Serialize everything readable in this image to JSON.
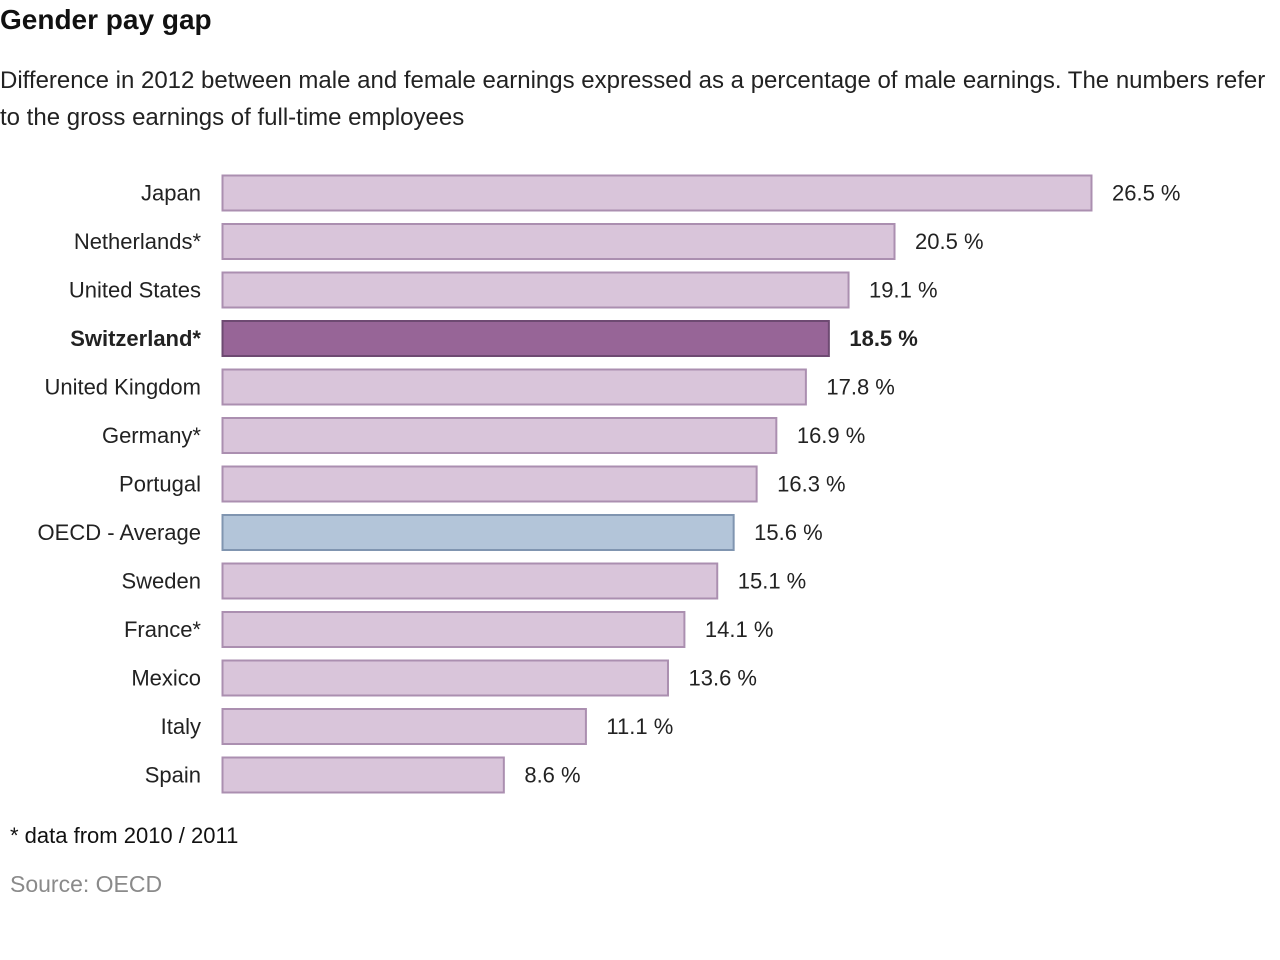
{
  "header": {
    "title": "Gender pay gap",
    "subtitle": "Difference in 2012 between male and female earnings expressed as a percentage of male earnings. The numbers refer to the gross earnings of full-time employees"
  },
  "chart_data": {
    "type": "bar",
    "orientation": "horizontal",
    "title": "Gender pay gap",
    "subtitle": "Difference in 2012 between male and female earnings expressed as a percentage of male earnings. The numbers refer to the gross earnings of full-time employees",
    "xlabel": "",
    "ylabel": "",
    "value_suffix": " %",
    "xlim": [
      0,
      26.5
    ],
    "grid": false,
    "legend": "none",
    "categories": [
      "Japan",
      "Netherlands*",
      "United States",
      "Switzerland*",
      "United Kingdom",
      "Germany*",
      "Portugal",
      "OECD - Average",
      "Sweden",
      "France*",
      "Mexico",
      "Italy",
      "Spain"
    ],
    "values": [
      26.5,
      20.5,
      19.1,
      18.5,
      17.8,
      16.9,
      16.3,
      15.6,
      15.1,
      14.1,
      13.6,
      11.1,
      8.6
    ],
    "value_labels": [
      "26.5 %",
      "20.5 %",
      "19.1 %",
      "18.5 %",
      "17.8 %",
      "16.9 %",
      "16.3 %",
      "15.6 %",
      "15.1 %",
      "14.1 %",
      "13.6 %",
      "11.1 %",
      "8.6 %"
    ],
    "highlight": {
      "Switzerland*": "emphasis",
      "OECD - Average": "average"
    },
    "colors": {
      "default_fill": "#d9c5da",
      "default_stroke": "#ab8fb0",
      "emphasis_fill": "#976597",
      "emphasis_stroke": "#6e4a72",
      "average_fill": "#b3c5d9",
      "average_stroke": "#8095b0"
    }
  },
  "footer": {
    "footnote": "* data from 2010 / 2011",
    "source": "Source: OECD"
  }
}
